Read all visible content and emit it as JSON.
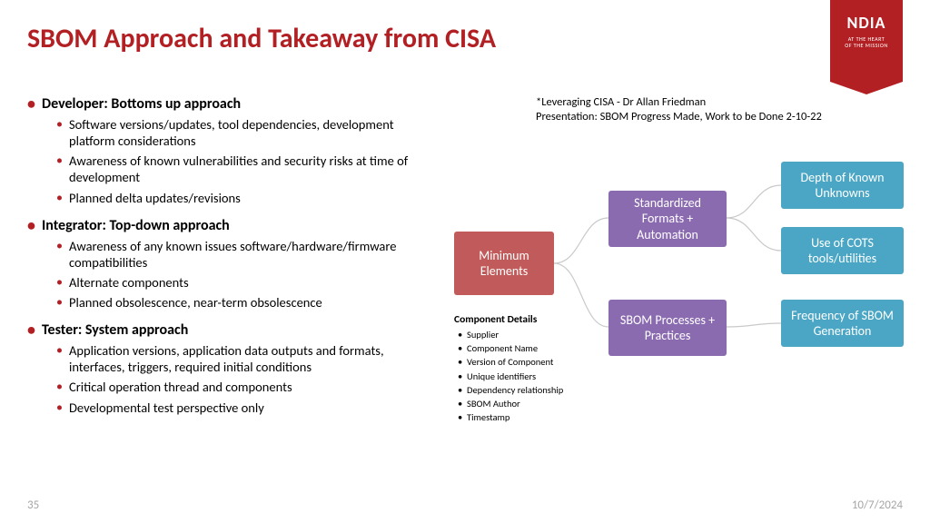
{
  "title": "SBOM Approach and Takeaway from CISA",
  "badge": {
    "logo": "NDIA",
    "tagline": "AT THE HEART\nOF THE MISSION"
  },
  "citation": {
    "line1": "*Leveraging CISA - Dr Allan Friedman",
    "line2": "Presentation: SBOM Progress Made, Work to be Done 2-10-22"
  },
  "sections": [
    {
      "head": "Developer:  Bottoms up approach",
      "items": [
        "Software versions/updates, tool dependencies, development platform considerations",
        "Awareness of known vulnerabilities and security risks at time of development",
        "Planned delta updates/revisions"
      ]
    },
    {
      "head": "Integrator:  Top-down approach",
      "items": [
        "Awareness of any known issues software/hardware/firmware compatibilities",
        "Alternate components",
        "Planned obsolescence, near-term obsolescence"
      ]
    },
    {
      "head": "Tester:  System approach",
      "items": [
        "Application versions, application data outputs and formats, interfaces, triggers, required initial conditions",
        "Critical operation thread and components",
        "Developmental test perspective only"
      ]
    }
  ],
  "diagram": {
    "type": "tree",
    "root": {
      "label": "Minimum Elements",
      "color": "#c15b5b"
    },
    "mids": [
      {
        "label": "Standardized Formats + Automation",
        "color": "#8b6bb0"
      },
      {
        "label": "SBOM Processes + Practices",
        "color": "#8b6bb0"
      }
    ],
    "leaves": [
      {
        "label": "Depth of Known Unknowns",
        "color": "#4aa6c4"
      },
      {
        "label": "Use of COTS tools/utilities",
        "color": "#4aa6c4"
      },
      {
        "label": "Frequency of SBOM Generation",
        "color": "#4aa6c4"
      }
    ],
    "edge_color": "#c9c9c9"
  },
  "component_details": {
    "title": "Component Details",
    "items": [
      "Supplier",
      "Component Name",
      "Version of Component",
      "Unique identifiers",
      "Dependency relationship",
      "SBOM Author",
      "Timestamp"
    ]
  },
  "footer": {
    "page": "35",
    "date": "10/7/2024"
  },
  "colors": {
    "title": "#b22024",
    "bullet": "#b22024",
    "footer": "#a6a6a6",
    "background": "#ffffff"
  }
}
